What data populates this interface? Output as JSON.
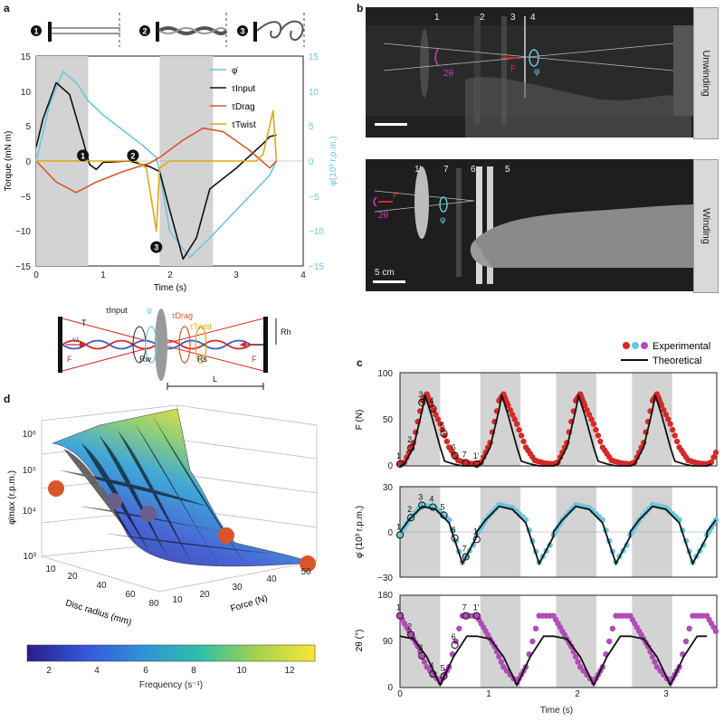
{
  "panels": {
    "a": "a",
    "b": "b",
    "c": "c",
    "d": "d"
  },
  "panel_a": {
    "stage_markers": [
      "1",
      "2",
      "3"
    ],
    "ylabel_left": "Torque (mN m)",
    "ylabel_right": "φ̇(10³ r.p.m.)",
    "xlabel": "Time (s)",
    "yticks_left": [
      "15",
      "10",
      "5",
      "0",
      "−5",
      "−10",
      "−15"
    ],
    "yticks_right": [
      "15",
      "10",
      "5",
      "0",
      "−5",
      "−10",
      "−15"
    ],
    "xticks": [
      "0",
      "1",
      "2",
      "3",
      "4"
    ],
    "legend": [
      "φ̇",
      "τInput",
      "τDrag",
      "τTwist"
    ],
    "colors": {
      "phi": "#6cc6dc",
      "input": "#111111",
      "drag": "#d9562c",
      "twist": "#e0a818",
      "shade": "#d3d3d3"
    }
  },
  "panel_a_chart_data": {
    "type": "line",
    "xlim": [
      0,
      4
    ],
    "ylim": [
      -15,
      15
    ],
    "y2lim": [
      -15,
      15
    ],
    "shaded_regions": [
      [
        0,
        0.78
      ],
      [
        1.85,
        2.65
      ]
    ],
    "series": [
      {
        "name": "φ̇",
        "axis": "right",
        "x": [
          0,
          0.2,
          0.4,
          0.6,
          0.78,
          1.0,
          1.3,
          1.6,
          1.8,
          1.85,
          2.0,
          2.3,
          2.6,
          3.0,
          3.3,
          3.5,
          3.6
        ],
        "y": [
          0,
          8,
          12.8,
          11.2,
          8.6,
          6.6,
          4.4,
          2.2,
          0.5,
          -1.5,
          -10,
          -13.8,
          -11,
          -7,
          -4,
          -2,
          0
        ]
      },
      {
        "name": "τInput",
        "axis": "left",
        "x": [
          0,
          0.1,
          0.3,
          0.5,
          0.7,
          0.8,
          0.9,
          1.0,
          1.4,
          1.7,
          1.85,
          2.0,
          2.2,
          2.4,
          2.6,
          3.0,
          3.4,
          3.5,
          3.6
        ],
        "y": [
          2,
          6,
          11.2,
          9.5,
          3,
          -0.5,
          -1.2,
          -0.2,
          0,
          -0.8,
          -1.5,
          -7,
          -14,
          -11,
          -4,
          -1,
          2.5,
          3.5,
          3.7
        ]
      },
      {
        "name": "τDrag",
        "axis": "left",
        "x": [
          0,
          0.3,
          0.6,
          0.9,
          1.3,
          1.7,
          1.85,
          2.2,
          2.5,
          2.8,
          3.2,
          3.5,
          3.6
        ],
        "y": [
          0,
          -3,
          -4.5,
          -3,
          -1.5,
          -0.3,
          0.5,
          3,
          4.7,
          4.2,
          1.5,
          -1,
          0
        ]
      },
      {
        "name": "τTwist",
        "axis": "left",
        "x": [
          0,
          1.5,
          1.65,
          1.8,
          1.85,
          2.0,
          3.3,
          3.4,
          3.55,
          3.6
        ],
        "y": [
          0,
          0,
          -1,
          -10,
          -1,
          0,
          0,
          1,
          7.2,
          0
        ]
      }
    ],
    "markers": [
      {
        "label": "1",
        "x": 0.7,
        "y": 0.8
      },
      {
        "label": "2",
        "x": 1.45,
        "y": 0.8
      },
      {
        "label": "3",
        "x": 1.8,
        "y": -12.3
      }
    ]
  },
  "schematic": {
    "tau_input": "τInput",
    "phi": "φ̇",
    "tau_drag": "τDrag",
    "tau_twist": "τTwist",
    "T": "T",
    "F": "F",
    "omega": "ω",
    "Rh": "Rh",
    "Rw": "Rw",
    "Rs": "Rs",
    "L": "L"
  },
  "panel_b": {
    "top": {
      "labels": [
        "1",
        "2",
        "3",
        "4"
      ],
      "angle": "2θ",
      "force": "F",
      "phi": "φ",
      "tag": "Unwinding"
    },
    "bottom": {
      "labels": [
        "1'",
        "7",
        "6",
        "5"
      ],
      "angle": "2θ",
      "force": "F",
      "phi": "φ",
      "tag": "Winding",
      "scale": "5 cm"
    }
  },
  "panel_c": {
    "legend_experimental": "Experimental",
    "legend_theoretical": "Theoretical",
    "xlabel": "Time (s)",
    "xticks": [
      "0",
      "1",
      "2",
      "3"
    ],
    "F": {
      "ylabel": "F (N)",
      "yticks": [
        "100",
        "50",
        "0"
      ],
      "ylim": [
        0,
        100
      ],
      "labels": [
        "1",
        "2",
        "3",
        "4",
        "5",
        "6",
        "7",
        "1'"
      ]
    },
    "phi": {
      "ylabel": "φ̇ (10³ r.p.m.)",
      "yticks": [
        "30",
        "0",
        "−30"
      ],
      "ylim": [
        -30,
        30
      ],
      "labels": [
        "1",
        "2",
        "3",
        "4",
        "5",
        "6",
        "7",
        "1'"
      ]
    },
    "theta": {
      "ylabel": "2θ (°)",
      "yticks": [
        "180",
        "90",
        "0"
      ],
      "ylim": [
        0,
        180
      ],
      "labels": [
        "1",
        "2",
        "3",
        "4",
        "5",
        "6",
        "7",
        "1'"
      ]
    },
    "colors": {
      "F": "#d62828",
      "phi": "#6cc6dc",
      "theta": "#b04cb8",
      "theory": "#111111",
      "shade": "#d3d3d3"
    }
  },
  "panel_c_chart_data": {
    "type": "line",
    "xlim": [
      0,
      3.55
    ],
    "shaded_regions": [
      [
        0,
        0.45
      ],
      [
        0.9,
        1.35
      ],
      [
        1.75,
        2.2
      ],
      [
        2.6,
        3.05
      ]
    ],
    "period": 0.86,
    "F_experimental_cycle": {
      "x": [
        0,
        0.05,
        0.15,
        0.25,
        0.3,
        0.35,
        0.45,
        0.55,
        0.65,
        0.75,
        0.86
      ],
      "y": [
        2,
        4,
        25,
        70,
        77,
        65,
        45,
        20,
        6,
        3,
        2
      ]
    },
    "F_theory_cycle": {
      "x": [
        0,
        0.05,
        0.15,
        0.25,
        0.28,
        0.35,
        0.45,
        0.5,
        0.6,
        0.7,
        0.86
      ],
      "y": [
        0,
        2,
        20,
        60,
        76,
        55,
        20,
        5,
        2,
        0,
        0
      ]
    },
    "phi_experimental_cycle": {
      "x": [
        0,
        0.1,
        0.25,
        0.4,
        0.55,
        0.7,
        0.86
      ],
      "y": [
        -2,
        8,
        18,
        16,
        8,
        -20,
        -5
      ]
    },
    "phi_theory_cycle": {
      "x": [
        0,
        0.1,
        0.25,
        0.4,
        0.55,
        0.7,
        0.86
      ],
      "y": [
        0,
        8,
        17,
        15,
        6,
        -21,
        -3
      ]
    },
    "theta_experimental_cycle": {
      "x": [
        0,
        0.1,
        0.2,
        0.3,
        0.45,
        0.55,
        0.7,
        0.86
      ],
      "y": [
        140,
        110,
        80,
        40,
        10,
        40,
        140,
        140
      ]
    },
    "theta_theory_cycle": {
      "x": [
        0,
        0.15,
        0.3,
        0.45,
        0.6,
        0.75,
        0.86
      ],
      "y": [
        100,
        95,
        60,
        5,
        60,
        100,
        100
      ]
    }
  },
  "panel_d": {
    "zlabel": "φ̇max (r.p.m.)",
    "zticks": [
      "10⁶",
      "10⁵",
      "10⁴",
      "10³"
    ],
    "xlabel": "Disc radius (mm)",
    "xticks": [
      "10",
      "20",
      "40",
      "60",
      "80"
    ],
    "ylabel": "Force (N)",
    "yticks": [
      "10",
      "20",
      "30",
      "40",
      "50"
    ],
    "colorbar_label": "Frequency (s⁻¹)",
    "colorbar_ticks": [
      "2",
      "4",
      "6",
      "8",
      "10",
      "12"
    ]
  },
  "panel_d_chart_data": {
    "type": "surface",
    "experimental_points": [
      {
        "color": "#d9562c"
      },
      {
        "color": "#6b5f88"
      },
      {
        "color": "#6b5f88"
      },
      {
        "color": "#d9562c"
      },
      {
        "color": "#d9562c"
      }
    ]
  }
}
